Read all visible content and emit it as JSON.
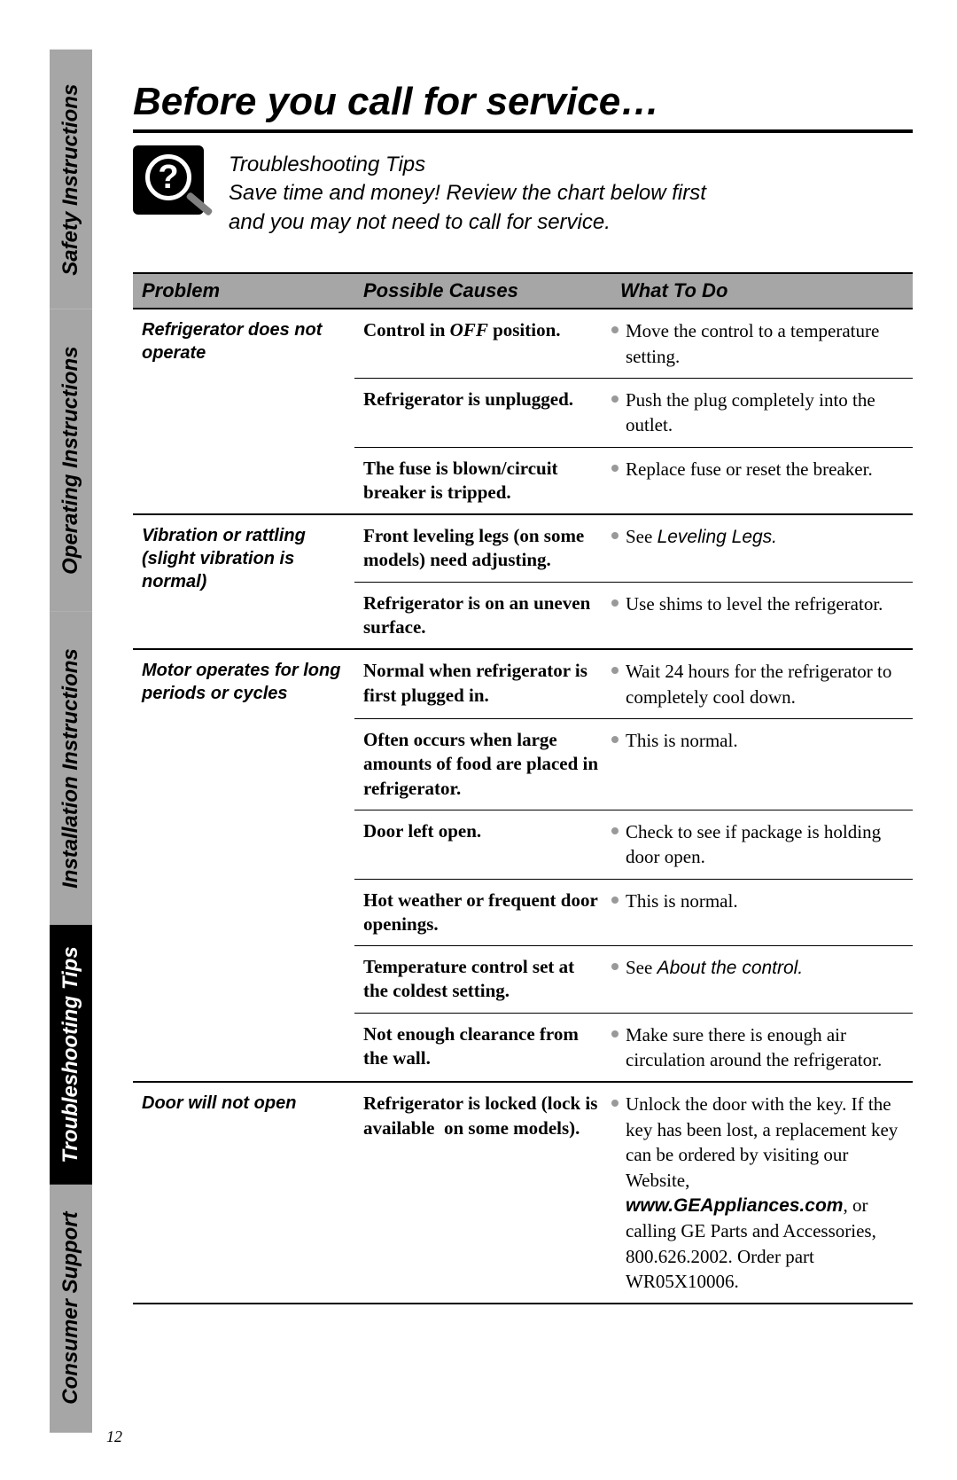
{
  "sidebar": {
    "tabs": [
      {
        "label": "Consumer Support",
        "style": "gray",
        "flex": 1.05
      },
      {
        "label": "Troubleshooting Tips",
        "style": "black",
        "flex": 1.1
      },
      {
        "label": "Installation Instructions",
        "style": "gray",
        "flex": 1.35
      },
      {
        "label": "Operating Instructions",
        "style": "gray",
        "flex": 1.3
      },
      {
        "label": "Safety Instructions",
        "style": "gray",
        "flex": 1.1
      }
    ]
  },
  "title": "Before you call for service…",
  "intro": {
    "line1": "Troubleshooting Tips",
    "line2": "Save time and money! Review the chart below first",
    "line3": "and you may not need to call for service."
  },
  "headers": {
    "problem": "Problem",
    "cause": "Possible Causes",
    "action": "What To Do"
  },
  "problems": [
    {
      "problem": "Refrigerator does not operate",
      "rows": [
        {
          "cause_html": "Control in <span class='off-bold'>OFF</span> position.",
          "action": "Move the control to a temperature setting."
        },
        {
          "cause_html": "Refrigerator is unplugged.",
          "action": "Push the plug completely into the outlet."
        },
        {
          "cause_html": "The fuse is blown/circuit breaker is tripped.",
          "action": "Replace fuse or reset the breaker."
        }
      ]
    },
    {
      "problem": "Vibration or rattling (slight vibration is normal)",
      "rows": [
        {
          "cause_html": "Front leveling legs (on some models) need adjusting.",
          "action_html": "See <span class='ital-ref'>Leveling Legs.</span>"
        },
        {
          "cause_html": "Refrigerator is on an uneven surface.",
          "action": "Use shims to level the refrigerator."
        }
      ]
    },
    {
      "problem": "Motor operates for long periods or cycles",
      "rows": [
        {
          "cause_html": "Normal when refrigerator is first plugged in.",
          "action": "Wait 24 hours for the refrigerator to completely cool down."
        },
        {
          "cause_html": "Often occurs when large amounts of food are placed in refrigerator.",
          "action": "This is normal."
        },
        {
          "cause_html": "Door left open.",
          "action": "Check to see if package is holding door open."
        },
        {
          "cause_html": "Hot weather or frequent door openings.",
          "action": "This is normal."
        },
        {
          "cause_html": "Temperature control set at the coldest setting.",
          "action_html": "See <span class='ital-ref'>About the control.</span>"
        },
        {
          "cause_html": "Not enough clearance from the wall.",
          "action": "Make sure there is enough air circulation around the refrigerator."
        }
      ]
    },
    {
      "problem": "Door will not open",
      "rows": [
        {
          "cause_html": "Refrigerator is locked (lock is available &nbsp;on some models).",
          "action_html": "Unlock the door with the key. If the key has been lost, a replacement key can be ordered by visiting our Website, <span class='ital-ref' style='font-weight:bold'>www.GEAppliances.com</span>, or calling GE Parts and Accessories, 800.626.2002. Order part WR05X10006."
        }
      ]
    }
  ],
  "page_number": "12",
  "colors": {
    "gray": "#a6a6a6",
    "black": "#000000",
    "bullet": "#999999"
  }
}
